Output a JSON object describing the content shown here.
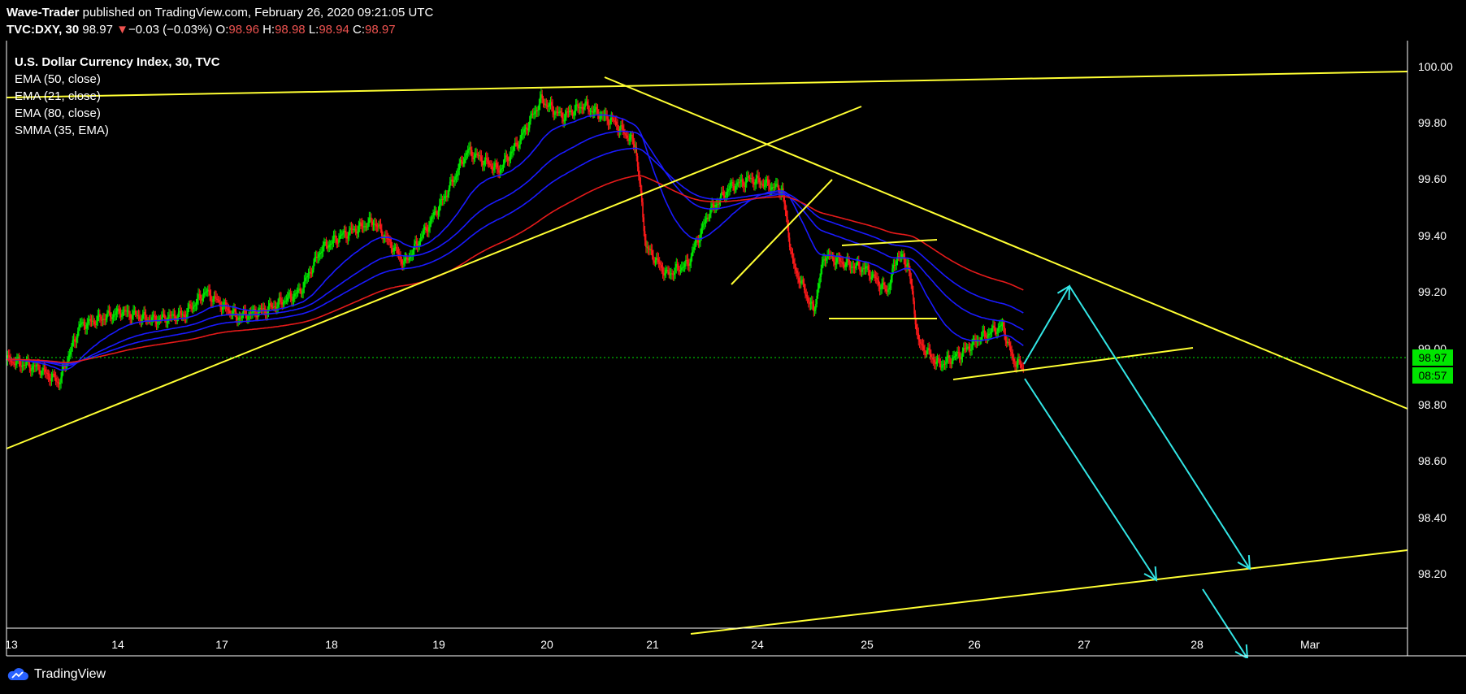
{
  "header": {
    "author": "Wave-Trader",
    "published_text": " published on TradingView.com, February 26, 2020 09:21:05 UTC",
    "symbol": "TVC:DXY, 30",
    "last": "98.97",
    "change_arrow": "▼",
    "change": "−0.03 (−0.03%)",
    "o_label": "O:",
    "o_val": "98.96",
    "h_label": "H:",
    "h_val": "98.98",
    "l_label": "L:",
    "l_val": "98.94",
    "c_label": "C:",
    "c_val": "98.97"
  },
  "legend": {
    "title": "U.S. Dollar Currency Index, 30, TVC",
    "items": [
      "EMA (50, close)",
      "EMA (21, close)",
      "EMA (80, close)",
      "SMMA (35, EMA)"
    ]
  },
  "price_axis": [
    "100.00",
    "99.80",
    "99.60",
    "99.40",
    "99.20",
    "99.00",
    "98.80",
    "98.60",
    "98.40",
    "98.20"
  ],
  "current_price": "98.97",
  "countdown": "08:57",
  "time_axis": [
    "13",
    "14",
    "17",
    "18",
    "19",
    "20",
    "21",
    "24",
    "25",
    "26",
    "27",
    "28",
    "Mar"
  ],
  "footer": {
    "brand": "TradingView"
  },
  "colors": {
    "up": "#00e600",
    "down": "#ff1a1a",
    "trend": "#ffff33",
    "arrow": "#33e6e6",
    "ema_blue": "#1a1aff",
    "ema_red": "#e61a1a"
  },
  "chart_data": {
    "type": "candlestick",
    "ylim": [
      98.0,
      100.07
    ],
    "price_path": [
      [
        0,
        98.96
      ],
      [
        3,
        98.93
      ],
      [
        5,
        98.88
      ],
      [
        7,
        99.08
      ],
      [
        11,
        99.13
      ],
      [
        14,
        99.1
      ],
      [
        17,
        99.12
      ],
      [
        19,
        99.2
      ],
      [
        22,
        99.11
      ],
      [
        25,
        99.14
      ],
      [
        28,
        99.2
      ],
      [
        30,
        99.35
      ],
      [
        32,
        99.4
      ],
      [
        35,
        99.45
      ],
      [
        38,
        99.3
      ],
      [
        40,
        99.42
      ],
      [
        42,
        99.55
      ],
      [
        44,
        99.7
      ],
      [
        47,
        99.63
      ],
      [
        49,
        99.74
      ],
      [
        51,
        99.88
      ],
      [
        53,
        99.82
      ],
      [
        55,
        99.86
      ],
      [
        58,
        99.8
      ],
      [
        60,
        99.72
      ],
      [
        61,
        99.36
      ],
      [
        63,
        99.26
      ],
      [
        65,
        99.3
      ],
      [
        67,
        99.48
      ],
      [
        69,
        99.57
      ],
      [
        71,
        99.6
      ],
      [
        74,
        99.56
      ],
      [
        75,
        99.3
      ],
      [
        77,
        99.13
      ],
      [
        78,
        99.33
      ],
      [
        80,
        99.3
      ],
      [
        82,
        99.28
      ],
      [
        84,
        99.2
      ],
      [
        85,
        99.33
      ],
      [
        86,
        99.3
      ],
      [
        87,
        99.02
      ],
      [
        89,
        98.94
      ],
      [
        91,
        98.98
      ],
      [
        93,
        99.04
      ],
      [
        95,
        99.08
      ],
      [
        96,
        98.96
      ],
      [
        97,
        98.93
      ]
    ]
  }
}
